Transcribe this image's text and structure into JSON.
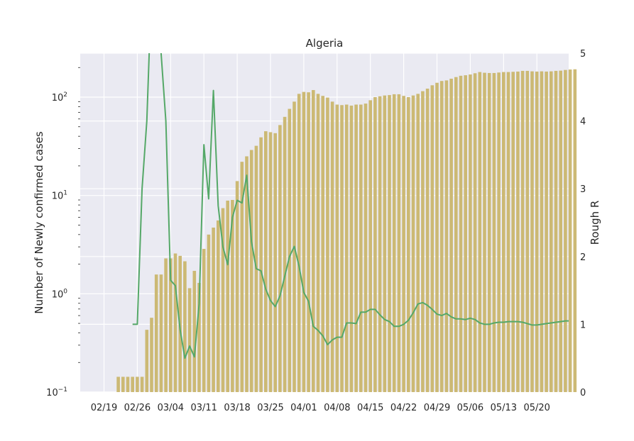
{
  "chart_data": {
    "type": "bar",
    "title": "Algeria",
    "ylabel": "Number of Newly confirmed cases",
    "y2label": "Rough R",
    "yscale": "log",
    "ylim": [
      0.1,
      280
    ],
    "y2lim": [
      0,
      5
    ],
    "grid": true,
    "x_tick_labels": [
      "02/19",
      "02/26",
      "03/04",
      "03/11",
      "03/18",
      "03/25",
      "04/01",
      "04/08",
      "04/15",
      "04/22",
      "04/29",
      "05/06",
      "05/13",
      "05/20"
    ],
    "y_tick_labels": [
      {
        "value": 0.1,
        "base": "10",
        "exp": "−1"
      },
      {
        "value": 1,
        "base": "10",
        "exp": "0"
      },
      {
        "value": 10,
        "base": "10",
        "exp": "1"
      },
      {
        "value": 100,
        "base": "10",
        "exp": "2"
      }
    ],
    "y2_tick_labels": [
      "0",
      "1",
      "2",
      "3",
      "4",
      "5"
    ],
    "colors": {
      "bars": "#ccb974",
      "r_line": "#55a868",
      "background": "#eaeaf2",
      "grid": "#ffffff"
    },
    "series": [
      {
        "kind": "bar",
        "start_date": "02/19",
        "values": [
          0,
          0,
          0,
          0.143,
          0.143,
          0.143,
          0.143,
          0.143,
          0.143,
          0.43,
          0.57,
          1.57,
          1.57,
          2.29,
          2.29,
          2.57,
          2.43,
          2.14,
          1.14,
          1.71,
          1.29,
          2.86,
          4.0,
          4.71,
          5.57,
          7.43,
          8.86,
          9.0,
          14.0,
          22.0,
          25.0,
          29.0,
          32.0,
          39.0,
          45.0,
          44.0,
          43.0,
          52.0,
          63.0,
          76.0,
          90.0,
          108.0,
          113.0,
          112.0,
          118.0,
          108.0,
          103.0,
          99.0,
          90.0,
          84.0,
          83.0,
          84.0,
          82.0,
          84.0,
          84.0,
          86.0,
          93.0,
          100.0,
          102.0,
          104.0,
          105.0,
          107.0,
          107.0,
          103.0,
          100.0,
          104.0,
          108.0,
          115.0,
          122.0,
          132.0,
          140.0,
          146.0,
          148.0,
          154.0,
          160.0,
          165.0,
          167.0,
          170.0,
          175.0,
          180.0,
          177.0,
          176.0,
          176.0,
          178.0,
          180.0,
          180.0,
          181.0,
          182.0,
          185.0,
          185.0,
          183.0,
          182.0,
          183.0,
          182.0,
          183.0,
          185.0,
          186.0,
          189.0,
          191.0,
          192.0
        ]
      },
      {
        "kind": "line",
        "axis": "right",
        "start_index": 6,
        "values": [
          1.0,
          1.0,
          3.0,
          4.0,
          6.0,
          6.0,
          5.0,
          4.0,
          1.65,
          1.57,
          0.92,
          0.5,
          0.68,
          0.52,
          1.3,
          3.65,
          2.85,
          4.45,
          2.75,
          2.14,
          1.88,
          2.58,
          2.83,
          2.79,
          3.2,
          2.22,
          1.82,
          1.79,
          1.52,
          1.35,
          1.26,
          1.42,
          1.71,
          2.0,
          2.15,
          1.86,
          1.47,
          1.34,
          0.97,
          0.91,
          0.83,
          0.7,
          0.77,
          0.81,
          0.81,
          1.02,
          1.02,
          1.01,
          1.18,
          1.18,
          1.22,
          1.22,
          1.14,
          1.07,
          1.04,
          0.97,
          0.97,
          1.0,
          1.06,
          1.17,
          1.3,
          1.32,
          1.28,
          1.22,
          1.15,
          1.13,
          1.16,
          1.11,
          1.08,
          1.08,
          1.07,
          1.09,
          1.07,
          1.02,
          1.0,
          1.0,
          1.02,
          1.03,
          1.03,
          1.04,
          1.04,
          1.04,
          1.03,
          1.01,
          0.99,
          0.99,
          1.0,
          1.01,
          1.02,
          1.03,
          1.04,
          1.05,
          1.05,
          1.05
        ]
      }
    ]
  }
}
